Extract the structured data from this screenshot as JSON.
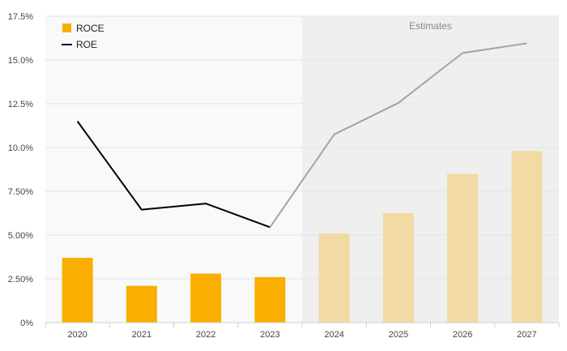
{
  "chart_data": {
    "type": "bar",
    "categories": [
      "2020",
      "2021",
      "2022",
      "2023",
      "2024",
      "2025",
      "2026",
      "2027"
    ],
    "series": [
      {
        "name": "ROCE",
        "type": "bar",
        "values": [
          3.7,
          2.1,
          2.8,
          2.6,
          5.1,
          6.25,
          8.5,
          9.8
        ]
      },
      {
        "name": "ROE",
        "type": "line",
        "values": [
          11.5,
          6.45,
          6.8,
          5.45,
          10.75,
          12.55,
          15.4,
          15.95
        ]
      }
    ],
    "y_ticks": [
      "0%",
      "2.50%",
      "5.00%",
      "7.50%",
      "10.0%",
      "12.5%",
      "15.0%",
      "17.5%"
    ],
    "ylim": [
      0,
      17.5
    ],
    "estimates_label": "Estimates",
    "estimates_from": "2024",
    "legend_position": "top-left",
    "grid": true,
    "colors": {
      "roce_actual": "#F9AE00",
      "roce_estimate": "#F2DAA4",
      "roe_actual": "#000000",
      "roe_estimate": "#A3A3A3",
      "estimate_band": "#EFEFEF",
      "plot_background": "#F9F9F9"
    }
  }
}
